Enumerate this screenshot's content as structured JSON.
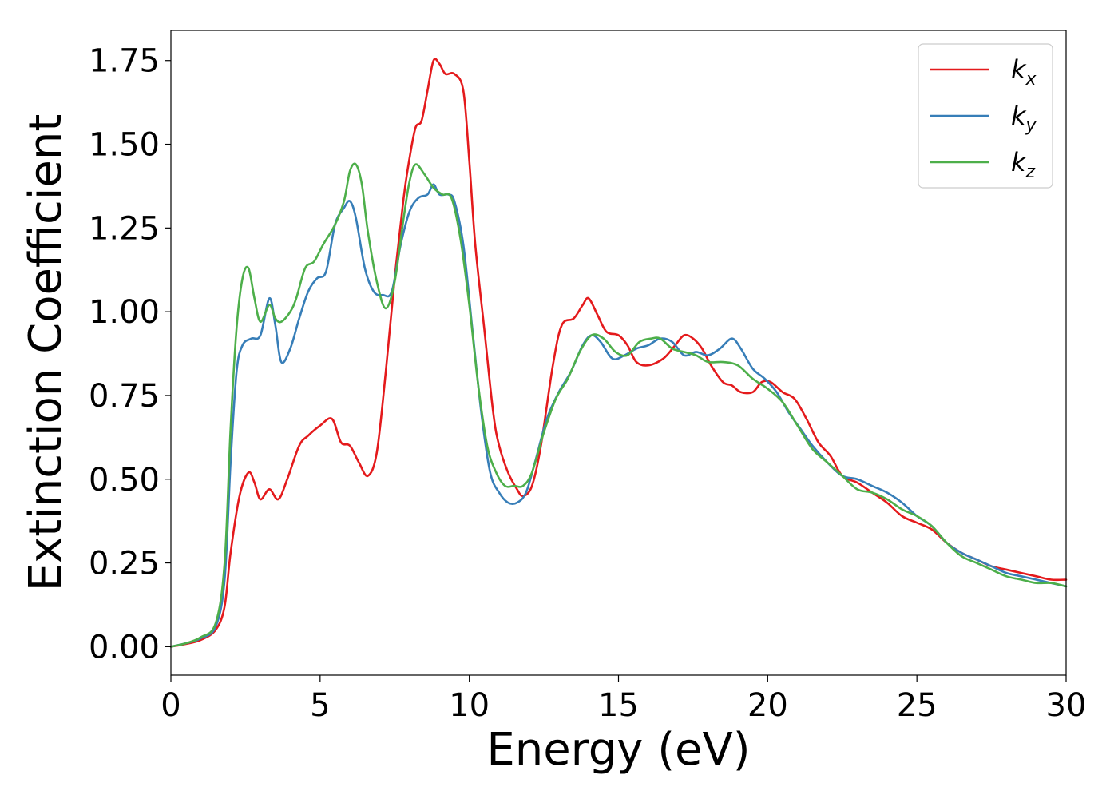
{
  "chart_data": {
    "type": "line",
    "xlabel": "Energy (eV)",
    "ylabel": "Extinction Coefficient",
    "xlim": [
      0,
      30
    ],
    "ylim": [
      -0.085,
      1.84
    ],
    "xticks": [
      0,
      5,
      10,
      15,
      20,
      25,
      30
    ],
    "yticks": [
      0.0,
      0.25,
      0.5,
      0.75,
      1.0,
      1.25,
      1.5,
      1.75
    ],
    "xtick_labels": [
      "0",
      "5",
      "10",
      "15",
      "20",
      "25",
      "30"
    ],
    "ytick_labels": [
      "0.00",
      "0.25",
      "0.50",
      "0.75",
      "1.00",
      "1.25",
      "1.50",
      "1.75"
    ],
    "grid": false,
    "legend_position": "top-right",
    "series": [
      {
        "name": "k_x",
        "label_main": "k",
        "label_sub": "x",
        "color": "#e41a1c",
        "points": [
          [
            0,
            0.0
          ],
          [
            0.5,
            0.008
          ],
          [
            1.0,
            0.02
          ],
          [
            1.5,
            0.05
          ],
          [
            1.8,
            0.12
          ],
          [
            2.0,
            0.28
          ],
          [
            2.3,
            0.45
          ],
          [
            2.6,
            0.52
          ],
          [
            2.8,
            0.49
          ],
          [
            3.0,
            0.44
          ],
          [
            3.3,
            0.47
          ],
          [
            3.6,
            0.44
          ],
          [
            3.9,
            0.5
          ],
          [
            4.3,
            0.6
          ],
          [
            4.6,
            0.63
          ],
          [
            5.0,
            0.66
          ],
          [
            5.4,
            0.68
          ],
          [
            5.7,
            0.61
          ],
          [
            6.0,
            0.6
          ],
          [
            6.3,
            0.55
          ],
          [
            6.6,
            0.51
          ],
          [
            6.9,
            0.58
          ],
          [
            7.2,
            0.82
          ],
          [
            7.5,
            1.1
          ],
          [
            7.8,
            1.34
          ],
          [
            8.0,
            1.46
          ],
          [
            8.2,
            1.55
          ],
          [
            8.4,
            1.57
          ],
          [
            8.6,
            1.66
          ],
          [
            8.8,
            1.75
          ],
          [
            9.0,
            1.74
          ],
          [
            9.2,
            1.71
          ],
          [
            9.5,
            1.71
          ],
          [
            9.8,
            1.66
          ],
          [
            10.0,
            1.45
          ],
          [
            10.2,
            1.2
          ],
          [
            10.5,
            0.95
          ],
          [
            10.8,
            0.7
          ],
          [
            11.0,
            0.6
          ],
          [
            11.3,
            0.52
          ],
          [
            11.6,
            0.47
          ],
          [
            11.8,
            0.45
          ],
          [
            12.1,
            0.48
          ],
          [
            12.4,
            0.6
          ],
          [
            12.8,
            0.84
          ],
          [
            13.1,
            0.96
          ],
          [
            13.5,
            0.98
          ],
          [
            13.8,
            1.02
          ],
          [
            14.0,
            1.04
          ],
          [
            14.3,
            0.99
          ],
          [
            14.6,
            0.94
          ],
          [
            15.0,
            0.93
          ],
          [
            15.3,
            0.9
          ],
          [
            15.6,
            0.85
          ],
          [
            16.0,
            0.84
          ],
          [
            16.5,
            0.86
          ],
          [
            16.9,
            0.9
          ],
          [
            17.2,
            0.93
          ],
          [
            17.5,
            0.92
          ],
          [
            17.8,
            0.89
          ],
          [
            18.1,
            0.84
          ],
          [
            18.5,
            0.79
          ],
          [
            18.8,
            0.78
          ],
          [
            19.1,
            0.76
          ],
          [
            19.5,
            0.76
          ],
          [
            19.8,
            0.79
          ],
          [
            20.1,
            0.79
          ],
          [
            20.5,
            0.76
          ],
          [
            20.9,
            0.74
          ],
          [
            21.3,
            0.68
          ],
          [
            21.7,
            0.61
          ],
          [
            22.1,
            0.57
          ],
          [
            22.5,
            0.51
          ],
          [
            23.0,
            0.49
          ],
          [
            23.5,
            0.46
          ],
          [
            24.0,
            0.43
          ],
          [
            24.5,
            0.39
          ],
          [
            25.0,
            0.37
          ],
          [
            25.5,
            0.35
          ],
          [
            26.0,
            0.31
          ],
          [
            26.5,
            0.28
          ],
          [
            27.0,
            0.26
          ],
          [
            27.5,
            0.24
          ],
          [
            28.0,
            0.23
          ],
          [
            28.5,
            0.22
          ],
          [
            29.0,
            0.21
          ],
          [
            29.5,
            0.2
          ],
          [
            30.0,
            0.2
          ]
        ]
      },
      {
        "name": "k_y",
        "label_main": "k",
        "label_sub": "y",
        "color": "#377eb8",
        "points": [
          [
            0,
            0.0
          ],
          [
            0.5,
            0.01
          ],
          [
            1.0,
            0.025
          ],
          [
            1.5,
            0.06
          ],
          [
            1.8,
            0.2
          ],
          [
            2.0,
            0.55
          ],
          [
            2.2,
            0.82
          ],
          [
            2.4,
            0.9
          ],
          [
            2.7,
            0.92
          ],
          [
            3.0,
            0.93
          ],
          [
            3.3,
            1.04
          ],
          [
            3.5,
            0.96
          ],
          [
            3.7,
            0.85
          ],
          [
            4.0,
            0.89
          ],
          [
            4.3,
            0.98
          ],
          [
            4.6,
            1.06
          ],
          [
            4.9,
            1.1
          ],
          [
            5.2,
            1.12
          ],
          [
            5.5,
            1.26
          ],
          [
            5.8,
            1.31
          ],
          [
            6.0,
            1.33
          ],
          [
            6.2,
            1.28
          ],
          [
            6.5,
            1.13
          ],
          [
            6.8,
            1.06
          ],
          [
            7.1,
            1.05
          ],
          [
            7.4,
            1.06
          ],
          [
            7.7,
            1.2
          ],
          [
            8.0,
            1.3
          ],
          [
            8.3,
            1.34
          ],
          [
            8.6,
            1.35
          ],
          [
            8.8,
            1.38
          ],
          [
            9.0,
            1.35
          ],
          [
            9.3,
            1.35
          ],
          [
            9.5,
            1.33
          ],
          [
            9.8,
            1.2
          ],
          [
            10.1,
            0.95
          ],
          [
            10.4,
            0.7
          ],
          [
            10.7,
            0.52
          ],
          [
            11.0,
            0.46
          ],
          [
            11.3,
            0.43
          ],
          [
            11.6,
            0.43
          ],
          [
            11.9,
            0.46
          ],
          [
            12.2,
            0.55
          ],
          [
            12.6,
            0.68
          ],
          [
            13.0,
            0.76
          ],
          [
            13.4,
            0.82
          ],
          [
            13.8,
            0.9
          ],
          [
            14.1,
            0.93
          ],
          [
            14.4,
            0.91
          ],
          [
            14.8,
            0.86
          ],
          [
            15.2,
            0.87
          ],
          [
            15.6,
            0.89
          ],
          [
            16.0,
            0.9
          ],
          [
            16.4,
            0.92
          ],
          [
            16.8,
            0.91
          ],
          [
            17.2,
            0.87
          ],
          [
            17.6,
            0.88
          ],
          [
            18.0,
            0.87
          ],
          [
            18.4,
            0.89
          ],
          [
            18.8,
            0.92
          ],
          [
            19.1,
            0.89
          ],
          [
            19.5,
            0.83
          ],
          [
            19.9,
            0.8
          ],
          [
            20.3,
            0.76
          ],
          [
            20.7,
            0.7
          ],
          [
            21.1,
            0.65
          ],
          [
            21.5,
            0.6
          ],
          [
            22.0,
            0.55
          ],
          [
            22.5,
            0.51
          ],
          [
            23.0,
            0.5
          ],
          [
            23.5,
            0.48
          ],
          [
            24.0,
            0.46
          ],
          [
            24.5,
            0.43
          ],
          [
            25.0,
            0.39
          ],
          [
            25.5,
            0.36
          ],
          [
            26.0,
            0.31
          ],
          [
            26.5,
            0.28
          ],
          [
            27.0,
            0.26
          ],
          [
            27.5,
            0.24
          ],
          [
            28.0,
            0.22
          ],
          [
            28.5,
            0.21
          ],
          [
            29.0,
            0.2
          ],
          [
            29.5,
            0.19
          ],
          [
            30.0,
            0.18
          ]
        ]
      },
      {
        "name": "k_z",
        "label_main": "k",
        "label_sub": "z",
        "color": "#4daf4a",
        "points": [
          [
            0,
            0.0
          ],
          [
            0.5,
            0.01
          ],
          [
            1.0,
            0.028
          ],
          [
            1.5,
            0.07
          ],
          [
            1.8,
            0.25
          ],
          [
            2.0,
            0.65
          ],
          [
            2.2,
            0.95
          ],
          [
            2.4,
            1.1
          ],
          [
            2.6,
            1.13
          ],
          [
            2.8,
            1.04
          ],
          [
            3.0,
            0.97
          ],
          [
            3.3,
            1.02
          ],
          [
            3.5,
            0.98
          ],
          [
            3.7,
            0.97
          ],
          [
            4.0,
            1.0
          ],
          [
            4.2,
            1.04
          ],
          [
            4.5,
            1.13
          ],
          [
            4.8,
            1.15
          ],
          [
            5.1,
            1.2
          ],
          [
            5.5,
            1.26
          ],
          [
            5.8,
            1.33
          ],
          [
            6.0,
            1.42
          ],
          [
            6.2,
            1.44
          ],
          [
            6.4,
            1.38
          ],
          [
            6.6,
            1.24
          ],
          [
            6.9,
            1.09
          ],
          [
            7.2,
            1.01
          ],
          [
            7.5,
            1.09
          ],
          [
            7.8,
            1.28
          ],
          [
            8.0,
            1.39
          ],
          [
            8.2,
            1.44
          ],
          [
            8.5,
            1.41
          ],
          [
            8.8,
            1.37
          ],
          [
            9.1,
            1.35
          ],
          [
            9.4,
            1.34
          ],
          [
            9.7,
            1.22
          ],
          [
            10.0,
            1.02
          ],
          [
            10.3,
            0.78
          ],
          [
            10.6,
            0.6
          ],
          [
            10.9,
            0.52
          ],
          [
            11.2,
            0.48
          ],
          [
            11.5,
            0.48
          ],
          [
            11.8,
            0.48
          ],
          [
            12.1,
            0.52
          ],
          [
            12.5,
            0.64
          ],
          [
            12.9,
            0.74
          ],
          [
            13.3,
            0.8
          ],
          [
            13.7,
            0.88
          ],
          [
            14.1,
            0.93
          ],
          [
            14.5,
            0.92
          ],
          [
            14.9,
            0.88
          ],
          [
            15.3,
            0.87
          ],
          [
            15.7,
            0.91
          ],
          [
            16.1,
            0.92
          ],
          [
            16.4,
            0.92
          ],
          [
            16.8,
            0.89
          ],
          [
            17.2,
            0.88
          ],
          [
            17.6,
            0.87
          ],
          [
            18.0,
            0.85
          ],
          [
            18.5,
            0.85
          ],
          [
            19.0,
            0.84
          ],
          [
            19.5,
            0.8
          ],
          [
            20.0,
            0.77
          ],
          [
            20.5,
            0.73
          ],
          [
            21.0,
            0.66
          ],
          [
            21.5,
            0.59
          ],
          [
            22.0,
            0.55
          ],
          [
            22.5,
            0.51
          ],
          [
            23.0,
            0.47
          ],
          [
            23.5,
            0.46
          ],
          [
            24.0,
            0.44
          ],
          [
            24.5,
            0.41
          ],
          [
            25.0,
            0.39
          ],
          [
            25.5,
            0.36
          ],
          [
            26.0,
            0.31
          ],
          [
            26.5,
            0.27
          ],
          [
            27.0,
            0.25
          ],
          [
            27.5,
            0.23
          ],
          [
            28.0,
            0.21
          ],
          [
            28.5,
            0.2
          ],
          [
            29.0,
            0.19
          ],
          [
            29.5,
            0.19
          ],
          [
            30.0,
            0.18
          ]
        ]
      }
    ]
  }
}
